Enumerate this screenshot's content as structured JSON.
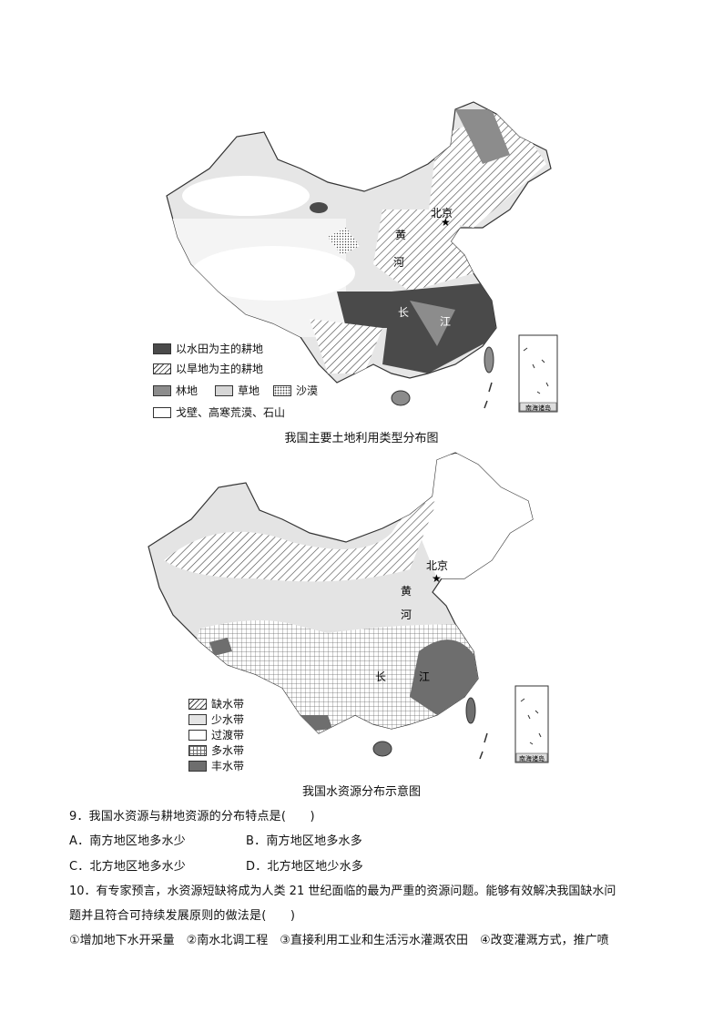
{
  "map1": {
    "caption": "我国主要土地利用类型分布图",
    "labels": {
      "beijing": "北京",
      "huang": "黄",
      "he": "河",
      "chang": "长",
      "jiang": "江",
      "inset": "南海诸岛"
    },
    "legend": [
      {
        "label": "以水田为主的耕地",
        "color": "#4a4a4a"
      },
      {
        "label": "以旱地为主的耕地",
        "pattern": "hatch"
      },
      {
        "label": "林地",
        "color": "#8c8c8c"
      },
      {
        "label": "草地",
        "color": "#d6d6d6"
      },
      {
        "label": "沙漠",
        "pattern": "dots"
      },
      {
        "label": "戈壁、高寒荒漠、石山",
        "color": "#ffffff"
      }
    ]
  },
  "map2": {
    "caption": "我国水资源分布示意图",
    "labels": {
      "beijing": "北京",
      "huang": "黄",
      "he": "河",
      "chang": "长",
      "jiang": "江",
      "inset": "南海诸岛"
    },
    "legend": [
      {
        "label": "缺水带",
        "pattern": "hatch"
      },
      {
        "label": "少水带",
        "color": "#e4e4e4"
      },
      {
        "label": "过渡带",
        "color": "#ffffff"
      },
      {
        "label": "多水带",
        "pattern": "grid"
      },
      {
        "label": "丰水带",
        "color": "#6e6e6e"
      }
    ]
  },
  "questions": {
    "q9": "9．我国水资源与耕地资源的分布特点是(　　)",
    "q9_a": "A．南方地区地多水少",
    "q9_b": "B．南方地区地多水多",
    "q9_c": "C．北方地区地多水少",
    "q9_d": "D．北方地区地少水多",
    "q10_line1": "10．有专家预言，水资源短缺将成为人类 21 世纪面临的最为严重的资源问题。能够有效解决我国缺水问",
    "q10_line2": "题并且符合可持续发展原则的做法是(　　)",
    "q10_line3": "①增加地下水开采量　②南水北调工程　③直接利用工业和生活污水灌溉农田　④改变灌溉方式，推广喷"
  }
}
